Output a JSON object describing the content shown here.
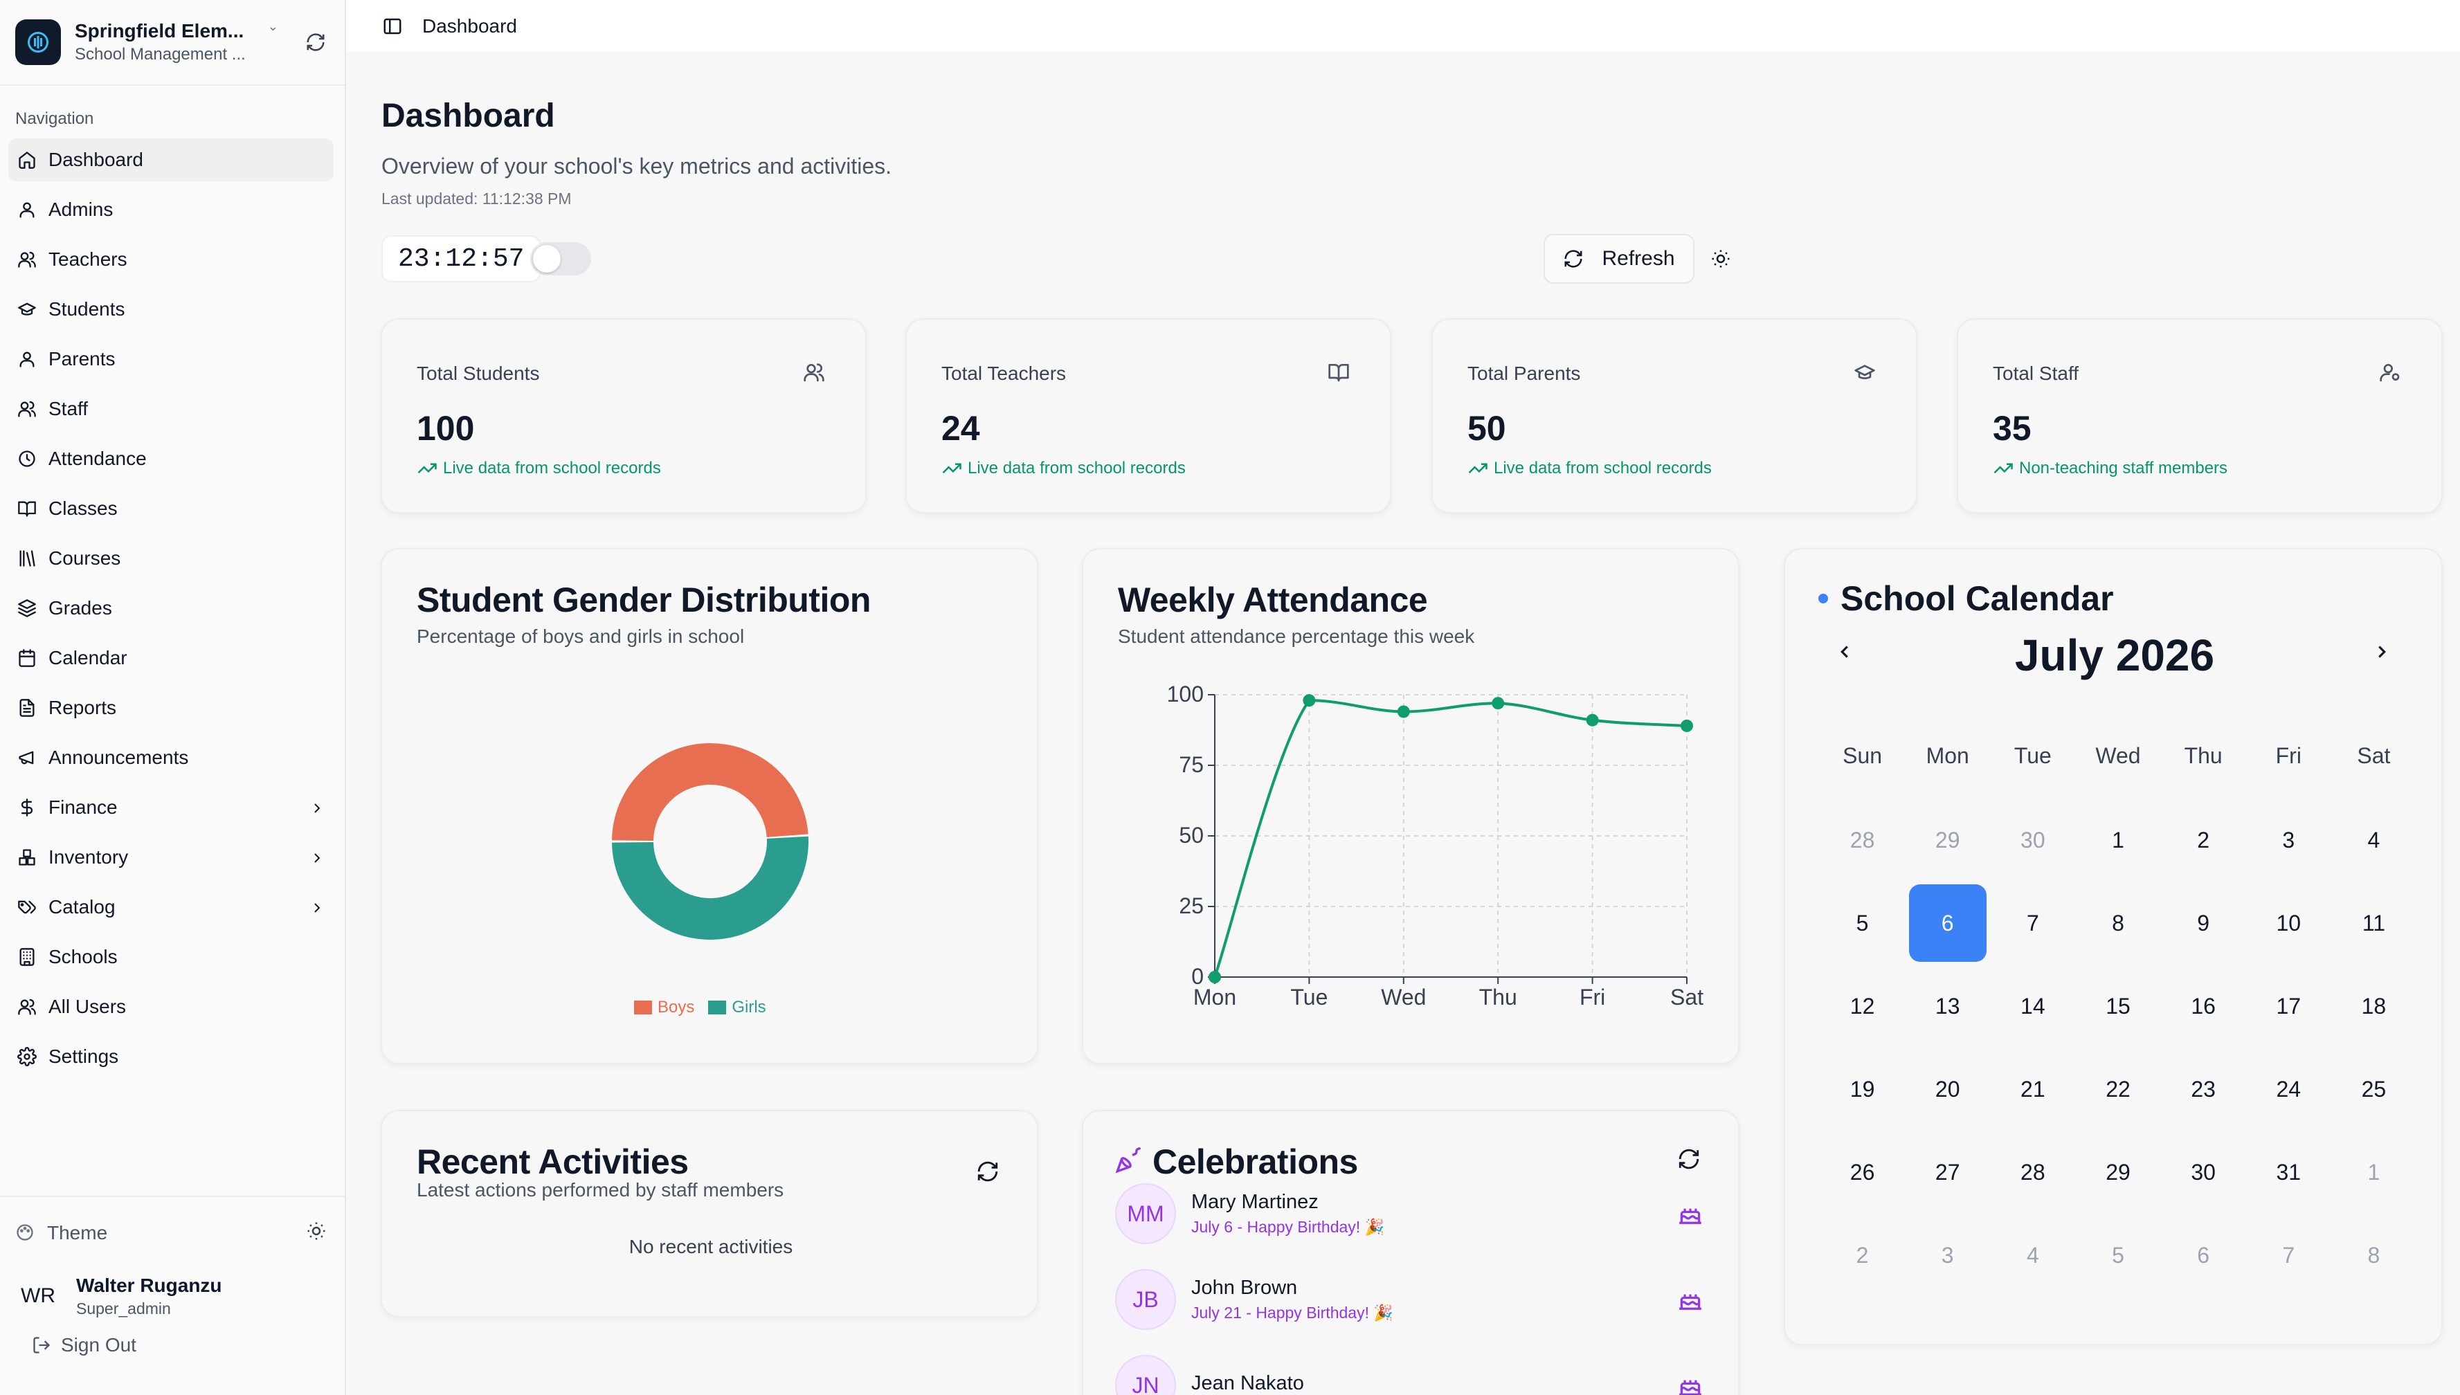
{
  "brand": {
    "name": "Springfield Elem...",
    "subtitle": "School Management ..."
  },
  "sidebar": {
    "section_label": "Navigation",
    "items": [
      {
        "label": "Dashboard",
        "icon": "home-icon"
      },
      {
        "label": "Admins",
        "icon": "user-icon"
      },
      {
        "label": "Teachers",
        "icon": "users-icon"
      },
      {
        "label": "Students",
        "icon": "graduation-cap-icon"
      },
      {
        "label": "Parents",
        "icon": "user-icon"
      },
      {
        "label": "Staff",
        "icon": "users-icon"
      },
      {
        "label": "Attendance",
        "icon": "clock-icon"
      },
      {
        "label": "Classes",
        "icon": "book-open-icon"
      },
      {
        "label": "Courses",
        "icon": "library-icon"
      },
      {
        "label": "Grades",
        "icon": "layers-icon"
      },
      {
        "label": "Calendar",
        "icon": "calendar-icon"
      },
      {
        "label": "Reports",
        "icon": "file-text-icon"
      },
      {
        "label": "Announcements",
        "icon": "megaphone-icon"
      },
      {
        "label": "Finance",
        "icon": "dollar-icon"
      },
      {
        "label": "Inventory",
        "icon": "boxes-icon"
      },
      {
        "label": "Catalog",
        "icon": "tags-icon"
      },
      {
        "label": "Schools",
        "icon": "building-icon"
      },
      {
        "label": "All Users",
        "icon": "users-icon"
      },
      {
        "label": "Settings",
        "icon": "gear-icon"
      }
    ],
    "theme_label": "Theme",
    "user": {
      "initials": "WR",
      "name": "Walter Ruganzu",
      "role": "Super_admin"
    },
    "signout_label": "Sign Out"
  },
  "topbar": {
    "breadcrumb": "Dashboard"
  },
  "page": {
    "title": "Dashboard",
    "subtitle": "Overview of your school's key metrics and activities.",
    "last_updated": "Last updated: 11:12:38 PM",
    "clock": "23:12:57",
    "refresh_label": "Refresh"
  },
  "stats": [
    {
      "label": "Total Students",
      "value": "100",
      "foot": "Live data from school records",
      "icon": "users-icon"
    },
    {
      "label": "Total Teachers",
      "value": "24",
      "foot": "Live data from school records",
      "icon": "book-open-icon"
    },
    {
      "label": "Total Parents",
      "value": "50",
      "foot": "Live data from school records",
      "icon": "graduation-cap-icon"
    },
    {
      "label": "Total Staff",
      "value": "35",
      "foot": "Non-teaching staff members",
      "icon": "user-cog-icon"
    }
  ],
  "gender_card": {
    "title": "Student Gender Distribution",
    "subtitle": "Percentage of boys and girls in school"
  },
  "attendance_card": {
    "title": "Weekly Attendance",
    "subtitle": "Student attendance percentage this week"
  },
  "chart_data": [
    {
      "type": "pie",
      "categories": [
        "Boys",
        "Girls"
      ],
      "values": [
        49,
        51
      ],
      "colors": [
        "#e76e50",
        "#2a9d8f"
      ],
      "legend": "bottom"
    },
    {
      "type": "line",
      "categories": [
        "Mon",
        "Tue",
        "Wed",
        "Thu",
        "Fri",
        "Sat"
      ],
      "values": [
        0,
        98,
        94,
        97,
        91,
        89
      ],
      "ylim": [
        0,
        100
      ],
      "yticks": [
        0,
        25,
        50,
        75,
        100
      ],
      "grid": true,
      "color": "#0f9d6b"
    }
  ],
  "calendar": {
    "title": "School Calendar",
    "month": "July 2026",
    "weekdays": [
      "Sun",
      "Mon",
      "Tue",
      "Wed",
      "Thu",
      "Fri",
      "Sat"
    ],
    "weeks": [
      [
        [
          "28",
          true
        ],
        [
          "29",
          true
        ],
        [
          "30",
          true
        ],
        [
          "1",
          false
        ],
        [
          "2",
          false
        ],
        [
          "3",
          false
        ],
        [
          "4",
          false
        ]
      ],
      [
        [
          "5",
          false
        ],
        [
          "6",
          false
        ],
        [
          "7",
          false
        ],
        [
          "8",
          false
        ],
        [
          "9",
          false
        ],
        [
          "10",
          false
        ],
        [
          "11",
          false
        ]
      ],
      [
        [
          "12",
          false
        ],
        [
          "13",
          false
        ],
        [
          "14",
          false
        ],
        [
          "15",
          false
        ],
        [
          "16",
          false
        ],
        [
          "17",
          false
        ],
        [
          "18",
          false
        ]
      ],
      [
        [
          "19",
          false
        ],
        [
          "20",
          false
        ],
        [
          "21",
          false
        ],
        [
          "22",
          false
        ],
        [
          "23",
          false
        ],
        [
          "24",
          false
        ],
        [
          "25",
          false
        ]
      ],
      [
        [
          "26",
          false
        ],
        [
          "27",
          false
        ],
        [
          "28",
          false
        ],
        [
          "29",
          false
        ],
        [
          "30",
          false
        ],
        [
          "31",
          false
        ],
        [
          "1",
          true
        ]
      ],
      [
        [
          "2",
          true
        ],
        [
          "3",
          true
        ],
        [
          "4",
          true
        ],
        [
          "5",
          true
        ],
        [
          "6",
          true
        ],
        [
          "7",
          true
        ],
        [
          "8",
          true
        ]
      ]
    ],
    "selected": "6"
  },
  "activities_card": {
    "title": "Recent Activities",
    "subtitle": "Latest actions performed by staff members",
    "empty": "No recent activities"
  },
  "celebrations_card": {
    "title": "Celebrations",
    "items": [
      {
        "initials": "MM",
        "name": "Mary Martinez",
        "date": "July 6 - Happy Birthday! 🎉"
      },
      {
        "initials": "JB",
        "name": "John Brown",
        "date": "July 21 - Happy Birthday! 🎉"
      },
      {
        "initials": "JN",
        "name": "Jean Nakato",
        "date": ""
      }
    ]
  }
}
